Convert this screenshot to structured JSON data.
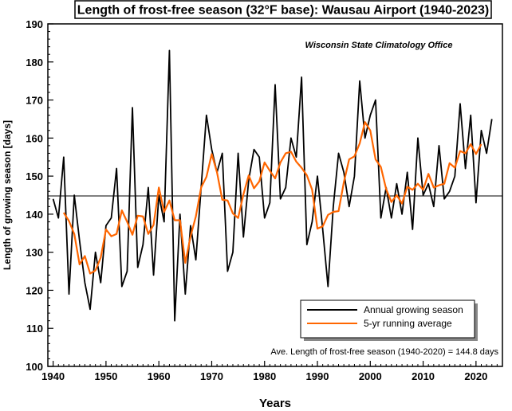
{
  "chart_data": {
    "type": "line",
    "title": "Length of frost-free season (32°F base): Wausau Airport (1940-2023)",
    "source": "Wisconsin State Climatology Office",
    "xlabel": "Years",
    "ylabel": "Length of growing season [days]",
    "xlim": [
      1939,
      2025
    ],
    "ylim": [
      100,
      190
    ],
    "xticks": [
      1940,
      1950,
      1960,
      1970,
      1980,
      1990,
      2000,
      2010,
      2020
    ],
    "yticks": [
      100,
      110,
      120,
      130,
      140,
      150,
      160,
      170,
      180,
      190
    ],
    "x": [
      1940,
      1941,
      1942,
      1943,
      1944,
      1945,
      1946,
      1947,
      1948,
      1949,
      1950,
      1951,
      1952,
      1953,
      1954,
      1955,
      1956,
      1957,
      1958,
      1959,
      1960,
      1961,
      1962,
      1963,
      1964,
      1965,
      1966,
      1967,
      1968,
      1969,
      1970,
      1971,
      1972,
      1973,
      1974,
      1975,
      1976,
      1977,
      1978,
      1979,
      1980,
      1981,
      1982,
      1983,
      1984,
      1985,
      1986,
      1987,
      1988,
      1989,
      1990,
      1991,
      1992,
      1993,
      1994,
      1995,
      1996,
      1997,
      1998,
      1999,
      2000,
      2001,
      2002,
      2003,
      2004,
      2005,
      2006,
      2007,
      2008,
      2009,
      2010,
      2011,
      2012,
      2013,
      2014,
      2015,
      2016,
      2017,
      2018,
      2019,
      2020,
      2021,
      2022,
      2023
    ],
    "series": [
      {
        "name": "Annual growing season",
        "color": "#000000",
        "values": [
          144,
          139,
          155,
          119,
          145,
          133,
          122,
          115,
          130,
          122,
          137,
          139,
          152,
          121,
          125,
          168,
          126,
          132,
          147,
          124,
          145,
          138,
          183,
          112,
          140,
          119,
          137,
          128,
          147,
          166,
          157,
          151,
          156,
          125,
          130,
          156,
          134,
          149,
          157,
          155,
          139,
          143,
          174,
          144,
          147,
          160,
          155,
          176,
          132,
          138,
          150,
          136,
          121,
          142,
          156,
          151,
          142,
          150,
          175,
          160,
          166,
          170,
          139,
          147,
          139,
          148,
          140,
          151,
          136,
          160,
          145,
          148,
          142,
          158,
          144,
          146,
          150,
          169,
          152,
          166,
          143,
          162,
          156,
          165
        ]
      },
      {
        "name": "5-yr running average",
        "color": "#ff6600",
        "values": [
          null,
          null,
          140.4,
          138.2,
          134.8,
          126.8,
          129.0,
          124.4,
          125.2,
          128.6,
          136.0,
          134.2,
          134.8,
          141.0,
          138.0,
          134.6,
          139.6,
          139.4,
          134.8,
          137.2,
          147.0,
          140.6,
          143.6,
          138.4,
          138.4,
          127.2,
          134.2,
          139.4,
          147.0,
          149.8,
          155.8,
          151.0,
          143.8,
          143.6,
          140.2,
          139.0,
          145.2,
          150.2,
          146.8,
          148.6,
          153.6,
          151.4,
          149.4,
          153.6,
          156.0,
          156.4,
          153.8,
          152.2,
          150.2,
          146.4,
          136.2,
          136.8,
          139.8,
          140.6,
          140.8,
          148.4,
          154.4,
          155.2,
          158.6,
          164.2,
          162.0,
          154.4,
          152.4,
          146.6,
          143.2,
          145.0,
          142.8,
          147.2,
          146.4,
          148.0,
          146.4,
          150.6,
          147.0,
          147.6,
          148.0,
          153.4,
          152.2,
          156.6,
          156.0,
          158.4,
          155.8,
          158.4,
          null,
          null
        ]
      }
    ],
    "reference_line": {
      "y": 144.8
    },
    "annotation": "Ave. Length of frost-free season (1940-2020) = 144.8 days",
    "legend_position": "lower-right",
    "grid": false
  }
}
